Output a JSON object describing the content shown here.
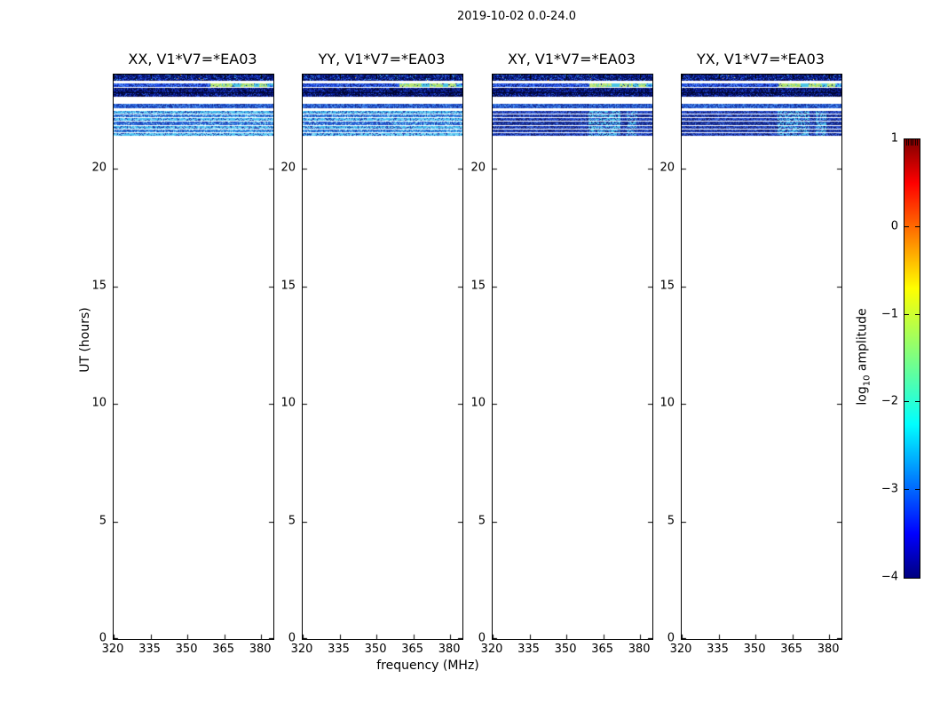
{
  "window": {
    "background": "#ffffff",
    "axes_edge_color": "#000000",
    "text_color": "#000000"
  },
  "chart_data": {
    "type": "heatmap",
    "title": "2019-10-02 0.0-24.0",
    "xlabel": "frequency (MHz)",
    "ylabel": "UT (hours)",
    "xlim": [
      320,
      385
    ],
    "ylim": [
      0,
      24
    ],
    "x_ticks": [
      320,
      335,
      350,
      365,
      380
    ],
    "x_tick_labels": [
      "320",
      "335",
      "350",
      "365",
      "380"
    ],
    "y_ticks": [
      0,
      5,
      10,
      15,
      20
    ],
    "y_tick_labels": [
      "0",
      "5",
      "10",
      "15",
      "20"
    ],
    "grid": false,
    "colormap": "jet",
    "legend_position": "none",
    "colorbar": {
      "label_prefix": "log",
      "label_sub": "10",
      "label_suffix": " amplitude",
      "lim": [
        -4,
        1
      ],
      "ticks": [
        1,
        0,
        -1,
        -2,
        -3,
        -4
      ],
      "tick_labels": [
        "1",
        "0",
        "−1",
        "−2",
        "−3",
        "−4"
      ],
      "gradient": [
        {
          "stop": 0.0,
          "color": "#00007f"
        },
        {
          "stop": 0.1,
          "color": "#0000ff"
        },
        {
          "stop": 0.35,
          "color": "#00ffff"
        },
        {
          "stop": 0.66,
          "color": "#ffff00"
        },
        {
          "stop": 0.9,
          "color": "#ff0000"
        },
        {
          "stop": 1.0,
          "color": "#7f0000"
        }
      ]
    },
    "panels": [
      {
        "pol": "XX",
        "title": "XX, V1*V7=*EA03",
        "block": "bright",
        "seed": 101
      },
      {
        "pol": "YY",
        "title": "YY, V1*V7=*EA03",
        "block": "bright",
        "seed": 202
      },
      {
        "pol": "XY",
        "title": "XY, V1*V7=*EA03",
        "block": "dark",
        "seed": 303
      },
      {
        "pol": "YX",
        "title": "YX, V1*V7=*EA03",
        "block": "dark",
        "seed": 404
      }
    ],
    "note": "Signal present only between UT 21.3 and 24.0 across 320-385 MHz; rest of the 0-24 h range is blank.",
    "bands": [
      {
        "name": "band-top",
        "ut": [
          23.74,
          24.0
        ],
        "amp": -3.1,
        "style": "speckle",
        "base": "#0b209e",
        "dark": "#020a42",
        "lite": "#2e5ce0",
        "p_dark": 0.42,
        "p_lite": 0.18,
        "p_cyan": 0.02,
        "cyan": "#44c0e8",
        "p_hot": 0.003
      },
      {
        "name": "band-bright",
        "ut": [
          23.49,
          23.62
        ],
        "amp": -2.6,
        "style": "speckle",
        "base": "#1c46e0",
        "dark": "#0a1a80",
        "lite": "#4a86f4",
        "p_dark": 0.22,
        "p_lite": 0.3,
        "segment": {
          "freq": [
            359.5,
            382.5
          ],
          "amp": -1.3,
          "main": [
            "#b2e26e",
            "#9ada5c",
            "#c6ea86"
          ],
          "alt": "#49c4e4",
          "alt_amp": -2.2,
          "gaps": [
            [
              368.5,
              371.5
            ],
            [
              376.9,
              379.2
            ]
          ],
          "tail": [
            382.5,
            385
          ],
          "tail_color": "#49c4e4"
        }
      },
      {
        "name": "band-c",
        "ut": [
          23.26,
          23.42
        ],
        "amp": -3.2,
        "style": "speckle",
        "base": "#0a1c96",
        "dark": "#01063a",
        "lite": "#2750d8",
        "p_dark": 0.45,
        "p_lite": 0.15
      },
      {
        "name": "band-sep",
        "ut": [
          23.215,
          23.26
        ],
        "amp": -3.7,
        "style": "flat",
        "base": "#020830"
      },
      {
        "name": "band-d",
        "ut": [
          23.06,
          23.215
        ],
        "amp": -3.2,
        "style": "speckle",
        "base": "#0a1c96",
        "dark": "#01063a",
        "lite": "#2750d8",
        "p_dark": 0.45,
        "p_lite": 0.15
      },
      {
        "name": "band-e",
        "ut": [
          22.58,
          22.74
        ],
        "amp": -2.8,
        "style": "speckle",
        "base": "#2257d2",
        "dark": "#102a96",
        "lite": "#4f94ee",
        "p_dark": 0.28,
        "p_lite": 0.3
      },
      {
        "name": "block",
        "ut": [
          21.34,
          22.45
        ],
        "amp_bright": -2.4,
        "amp_dark": -2.9,
        "style": "stripes",
        "n": 7
      }
    ],
    "block_styles": {
      "bright": {
        "stripes": [
          "#3cb4ea",
          "#2e7ce0",
          "#45bcee",
          "#2a66da",
          "#3fb6ea",
          "#2f84e2",
          "#49c0ee"
        ],
        "dark": "#1638aa",
        "lite": "#8edcf8",
        "p_dark": 0.24,
        "p_lite": 0.2,
        "patches": [
          {
            "freq": [
              356,
              385
            ],
            "color": "#5ac8f0",
            "p": 0.16,
            "amp": -2.2
          }
        ]
      },
      "dark": {
        "stripes": [
          "#2446c8",
          "#1931a2",
          "#2144c4",
          "#18309e",
          "#2346c6",
          "#1a34a6",
          "#2548ca"
        ],
        "dark": "#0a1870",
        "lite": "#3f6fe0",
        "p_dark": 0.3,
        "p_lite": 0.22,
        "patches": [
          {
            "freq": [
              359,
              372
            ],
            "color": "#4cc4ea",
            "p": 0.5,
            "amp": -2.2
          },
          {
            "freq": [
              374.5,
              379
            ],
            "color": "#4cc4ea",
            "p": 0.42,
            "amp": -2.3
          }
        ]
      }
    }
  }
}
